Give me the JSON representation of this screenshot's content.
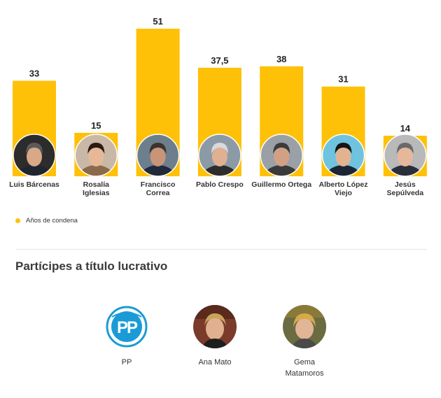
{
  "chart_data": {
    "type": "bar",
    "categories": [
      "Luis Bárcenas",
      "Rosalía Iglesias",
      "Francisco Correa",
      "Pablo Crespo",
      "Guillermo Ortega",
      "Alberto López Viejo",
      "Jesús Sepúlveda"
    ],
    "category_labels": [
      "Luis Bárcenas",
      "Rosalía\nIglesias",
      "Francisco\nCorrea",
      "Pablo Crespo",
      "Guillermo Ortega",
      "Alberto López\nViejo",
      "Jesús\nSepúlveda"
    ],
    "series": [
      {
        "name": "Años de condena",
        "values": [
          33,
          15,
          51,
          37.5,
          38,
          31,
          14
        ]
      }
    ],
    "value_labels": [
      "33",
      "15",
      "51",
      "37,5",
      "38",
      "31",
      "14"
    ],
    "ylim": [
      0,
      51
    ],
    "grid": false,
    "legend_position": "bottom-left",
    "bar_color": "#FFC107",
    "avatar_icons": [
      "barcenas-photo",
      "iglesias-photo",
      "correa-photo",
      "crespo-photo",
      "ortega-photo",
      "lopez-viejo-photo",
      "sepulveda-photo"
    ]
  },
  "legend": {
    "label": "Años de condena",
    "color": "#FFC107"
  },
  "section": {
    "title": "Partícipes a título lucrativo"
  },
  "participants": [
    {
      "name": "PP",
      "icon": "pp-logo"
    },
    {
      "name": "Ana Mato",
      "icon": "ana-mato-photo"
    },
    {
      "name": "Gema\nMatamoros",
      "icon": "gema-matamoros-photo"
    }
  ]
}
